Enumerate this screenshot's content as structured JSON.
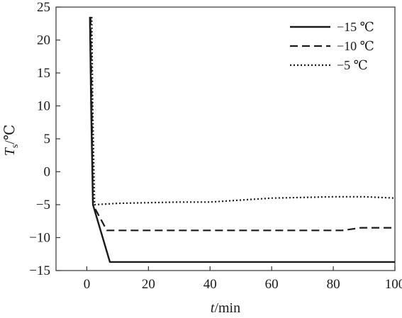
{
  "chart_data": {
    "type": "line",
    "xlabel_var": "t",
    "xlabel_unit": "/min",
    "ylabel_var": "T",
    "ylabel_sub": "s",
    "ylabel_unit": "/℃",
    "xlim": [
      -10,
      100
    ],
    "ylim": [
      -15,
      25
    ],
    "xticks": [
      "0",
      "20",
      "40",
      "60",
      "80",
      "100"
    ],
    "yticks": [
      "25",
      "20",
      "15",
      "10",
      "5",
      "0",
      "-5",
      "-10",
      "-15"
    ],
    "grid": false,
    "legend_position": "top-right",
    "series": [
      {
        "name": "−15 ℃",
        "style": "solid",
        "x": [
          1.0,
          1.4,
          2.0,
          7.5,
          20,
          40,
          60,
          80,
          100
        ],
        "y": [
          23.5,
          10,
          -5,
          -13.7,
          -13.7,
          -13.7,
          -13.7,
          -13.7,
          -13.7
        ]
      },
      {
        "name": "−10 ℃",
        "style": "dashed",
        "x": [
          1.2,
          1.6,
          2.0,
          6.5,
          20,
          40,
          60,
          80,
          83,
          89,
          100
        ],
        "y": [
          23.5,
          10,
          -5,
          -8.9,
          -8.9,
          -8.9,
          -8.9,
          -8.9,
          -8.9,
          -8.5,
          -8.5
        ]
      },
      {
        "name": "−5 ℃",
        "style": "dotted",
        "x": [
          1.6,
          1.9,
          2.5,
          10,
          20,
          30,
          40,
          50,
          60,
          70,
          80,
          90,
          100
        ],
        "y": [
          23.5,
          10,
          -5,
          -4.8,
          -4.7,
          -4.6,
          -4.6,
          -4.3,
          -4.0,
          -3.9,
          -3.8,
          -3.8,
          -4.0
        ]
      }
    ]
  }
}
